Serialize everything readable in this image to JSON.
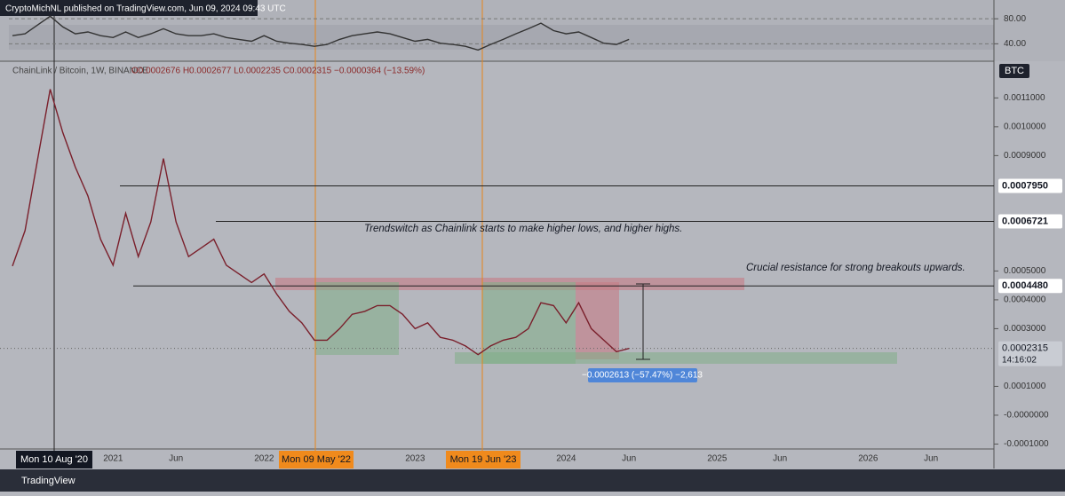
{
  "header": {
    "publisher": "CryptoMichNL published on TradingView.com, Jun 09, 2024 09:43 UTC",
    "footer": "TradingView"
  },
  "chart_data": [
    {
      "type": "line",
      "name": "RSI",
      "color": "#333333",
      "categories": [
        null,
        null,
        null,
        null,
        null,
        null,
        null,
        null,
        "2021",
        null,
        null,
        null,
        null,
        "Jun",
        null,
        null,
        null,
        null,
        null,
        null,
        "2022",
        null,
        null,
        null,
        null,
        null,
        null,
        null,
        null,
        null,
        null,
        null,
        "2023",
        null,
        null,
        null,
        null,
        null,
        null,
        null,
        null,
        null,
        null,
        null,
        "2024",
        null,
        null,
        null,
        null,
        "Jun",
        null,
        null,
        null,
        null,
        null,
        null,
        "2025",
        null,
        null,
        null,
        null,
        "Jun",
        null,
        null,
        null,
        null,
        null,
        null,
        "2026",
        null,
        null,
        null,
        null,
        "Jun"
      ],
      "values": [
        53,
        56,
        70,
        84,
        67,
        56,
        59,
        53,
        50,
        59,
        50,
        56,
        64,
        56,
        53,
        53,
        56,
        50,
        47,
        44,
        53,
        44,
        41,
        39,
        36,
        39,
        47,
        53,
        56,
        59,
        56,
        50,
        44,
        47,
        41,
        39,
        36,
        30,
        39,
        47,
        56,
        64,
        73,
        61,
        56,
        59,
        50,
        41,
        39,
        47,
        null,
        null,
        null,
        null,
        null,
        null,
        null,
        null,
        null,
        null,
        null,
        null,
        null,
        null,
        null,
        null,
        null,
        null,
        null,
        null,
        null,
        null,
        null,
        null
      ],
      "ylim": [
        16.4,
        102.9
      ],
      "yticks": [
        {
          "value": 80,
          "label": "80.00"
        },
        {
          "value": 40,
          "label": "40.00"
        }
      ]
    },
    {
      "type": "line",
      "name": "ChainLink / Bitcoin, 1W, BINANCE",
      "color": "#7a1f2b",
      "ohlc": "O0.0002676 H0.0002677 L0.0002235 C0.0002315 −0.0000364 (−13.59%)",
      "unit": "BTC",
      "categories": [
        null,
        null,
        null,
        null,
        null,
        null,
        null,
        null,
        "2021",
        null,
        null,
        null,
        null,
        "Jun",
        null,
        null,
        null,
        null,
        null,
        null,
        "2022",
        null,
        null,
        null,
        null,
        null,
        null,
        null,
        null,
        null,
        null,
        null,
        "2023",
        null,
        null,
        null,
        null,
        null,
        null,
        null,
        null,
        null,
        null,
        null,
        "2024",
        null,
        null,
        null,
        null,
        "Jun",
        null,
        null,
        null,
        null,
        null,
        null,
        "2025",
        null,
        null,
        null,
        null,
        "Jun",
        null,
        null,
        null,
        null,
        null,
        null,
        "2026",
        null,
        null,
        null,
        null,
        "Jun"
      ],
      "values": [
        0.000517,
        0.00064,
        0.000886,
        0.00113,
        0.00098,
        0.00086,
        0.00076,
        0.00061,
        0.00052,
        0.0007,
        0.00055,
        0.00067,
        0.00089,
        0.00067,
        0.00055,
        0.00058,
        0.00061,
        0.00052,
        0.00049,
        0.00046,
        0.00049,
        0.00042,
        0.00036,
        0.00032,
        0.00026,
        0.00026,
        0.0003,
        0.00035,
        0.00036,
        0.00038,
        0.00038,
        0.00035,
        0.0003,
        0.00032,
        0.00027,
        0.00026,
        0.00024,
        0.00021,
        0.00024,
        0.00026,
        0.00027,
        0.0003,
        0.00039,
        0.00038,
        0.00032,
        0.00039,
        0.0003,
        0.00026,
        0.00022,
        0.0002315,
        null,
        null,
        null,
        null,
        null,
        null,
        null,
        null,
        null,
        null,
        null,
        null,
        null,
        null,
        null,
        null,
        null,
        null,
        null,
        null,
        null,
        null,
        null,
        null
      ],
      "ylim": [
        -0.000114,
        0.001218
      ],
      "yticks": [
        {
          "value": 0.0011,
          "label": "0.0011000"
        },
        {
          "value": 0.001,
          "label": "0.0010000"
        },
        {
          "value": 0.0009,
          "label": "0.0009000"
        },
        {
          "value": 0.0005,
          "label": "0.0005000"
        },
        {
          "value": 0.0004,
          "label": "0.0004000"
        },
        {
          "value": 0.0003,
          "label": "0.0003000"
        },
        {
          "value": 0.0001,
          "label": "0.0001000"
        },
        {
          "value": 0,
          "label": "-0.0000000"
        },
        {
          "value": -0.0001,
          "label": "-0.0001000"
        }
      ],
      "levels": [
        {
          "value": 0.000795,
          "label": "0.0007950"
        },
        {
          "value": 0.0006721,
          "label": "0.0006721"
        },
        {
          "value": 0.000448,
          "label": "0.0004480"
        }
      ],
      "last": {
        "value": 0.0002315,
        "label": "0.0002315",
        "countdown": "14:16:02"
      },
      "crosshairs": [
        "Mon 10 Aug '20",
        "Mon 09 May '22",
        "Mon 19 Jun '23"
      ],
      "annotations": [
        "Trendswitch as Chainlink starts to make higher lows, and higher highs.",
        "Crucial resistance for strong breakouts upwards."
      ],
      "measure": "−0.0002613 (−57.47%) −2,613",
      "grid": false
    }
  ]
}
